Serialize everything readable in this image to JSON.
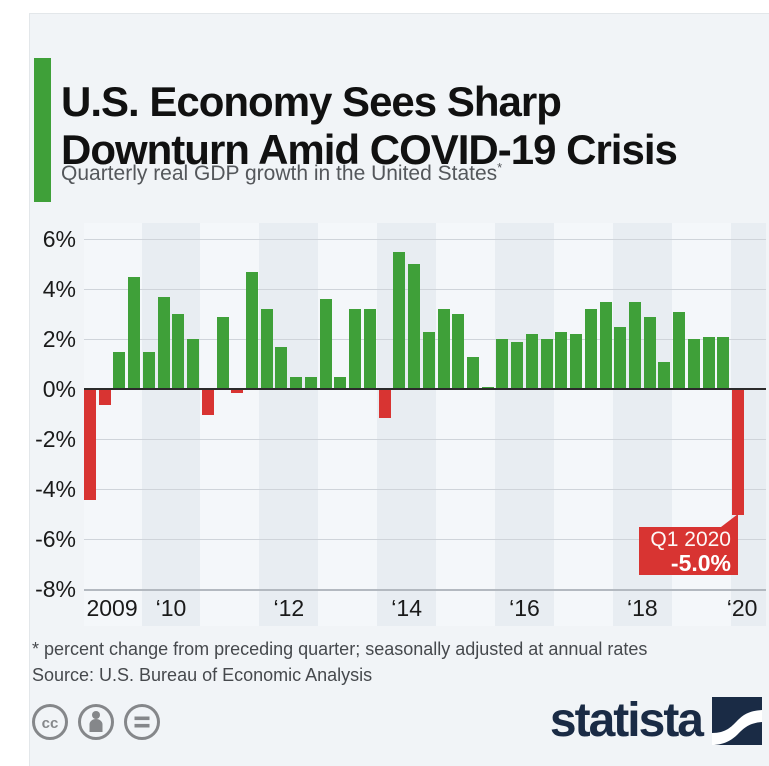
{
  "header": {
    "title": "U.S. Economy Sees Sharp Downturn Amid COVID-19 Crisis",
    "subtitle": "Quarterly real GDP growth in the United States",
    "footnote_marker": "*"
  },
  "chart_data": {
    "type": "bar",
    "title": "Quarterly real GDP growth in the United States",
    "unit": "percent, annualized quarter-on-quarter change",
    "ylim": [
      -8,
      6
    ],
    "grid": true,
    "y_axis": {
      "ticks": [
        6,
        4,
        2,
        0,
        -2,
        -4,
        -6,
        -8
      ],
      "tick_suffix": "%"
    },
    "x_axis": {
      "ticks": [
        {
          "label": "2009",
          "year_index": 0
        },
        {
          "label": "‘10",
          "year_index": 1
        },
        {
          "label": "‘12",
          "year_index": 3
        },
        {
          "label": "‘14",
          "year_index": 5
        },
        {
          "label": "‘16",
          "year_index": 7
        },
        {
          "label": "‘18",
          "year_index": 9
        },
        {
          "label": "‘20",
          "year_index": 11
        }
      ]
    },
    "series": [
      {
        "year": "2009",
        "values": [
          -4.4,
          -0.6,
          1.5,
          4.5
        ]
      },
      {
        "year": "2010",
        "values": [
          1.5,
          3.7,
          3.0,
          2.0
        ]
      },
      {
        "year": "2011",
        "values": [
          -1.0,
          2.9,
          -0.1,
          4.7
        ]
      },
      {
        "year": "2012",
        "values": [
          3.2,
          1.7,
          0.5,
          0.5
        ]
      },
      {
        "year": "2013",
        "values": [
          3.6,
          0.5,
          3.2,
          3.2
        ]
      },
      {
        "year": "2014",
        "values": [
          -1.1,
          5.5,
          5.0,
          2.3
        ]
      },
      {
        "year": "2015",
        "values": [
          3.2,
          3.0,
          1.3,
          0.1
        ]
      },
      {
        "year": "2016",
        "values": [
          2.0,
          1.9,
          2.2,
          2.0
        ]
      },
      {
        "year": "2017",
        "values": [
          2.3,
          2.2,
          3.2,
          3.5
        ]
      },
      {
        "year": "2018",
        "values": [
          2.5,
          3.5,
          2.9,
          1.1
        ]
      },
      {
        "year": "2019",
        "values": [
          3.1,
          2.0,
          2.1,
          2.1
        ]
      },
      {
        "year": "2020",
        "values": [
          -5.0
        ]
      }
    ],
    "colors": {
      "positive": "#3fa039",
      "negative": "#d83432",
      "accent": "#3fa039"
    },
    "annotation": {
      "quarter": "Q1 2020",
      "value": "-5.0%",
      "bg": "#d83432",
      "text_color": "#ffffff"
    }
  },
  "footer": {
    "footnote": "* percent change from preceding quarter; seasonally adjusted at annual rates",
    "source": "Source: U.S. Bureau of Economic Analysis"
  },
  "branding": {
    "logo_text": "statista",
    "logo_color": "#1a2b45",
    "license_icons": [
      "cc",
      "attribution",
      "no-derivatives"
    ],
    "icon_color": "#85878a"
  }
}
